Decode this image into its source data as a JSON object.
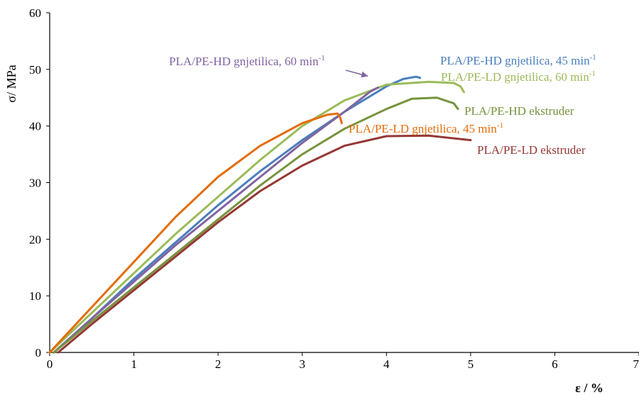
{
  "chart_data": {
    "type": "line",
    "title": "",
    "xlabel": "ε / %",
    "ylabel": "σ/ MPa",
    "xlim": [
      0,
      7
    ],
    "ylim": [
      0,
      60
    ],
    "xticks": [
      "0",
      "1",
      "2",
      "3",
      "4",
      "5",
      "6",
      "7"
    ],
    "yticks": [
      "0",
      "10",
      "20",
      "30",
      "40",
      "50",
      "60"
    ],
    "grid": false,
    "legend": "none; series labelled directly on the plot",
    "series": [
      {
        "name": "PLA/PE-HD gnjetilica, 45 min-1",
        "label_main": "PLA/PE-HD gnjetilica, 45 min",
        "label_sup": "-1",
        "color": "#4a7ebb",
        "x": [
          0.05,
          0.5,
          1.0,
          1.5,
          2.0,
          2.5,
          3.0,
          3.5,
          4.0,
          4.2,
          4.35,
          4.4
        ],
        "y": [
          0,
          6,
          13,
          19.5,
          26,
          32,
          37.5,
          42.5,
          47,
          48.3,
          48.7,
          48.5
        ]
      },
      {
        "name": "PLA/PE-LD gnjetilica, 60 min-1",
        "label_main": "PLA/PE-LD gnjetilica, 60 min",
        "label_sup": "-1",
        "color": "#9bbb59",
        "x": [
          0,
          0.5,
          1.0,
          1.5,
          2.0,
          2.5,
          3.0,
          3.5,
          4.0,
          4.5,
          4.8,
          4.88,
          4.92
        ],
        "y": [
          0,
          7,
          14,
          21,
          27.5,
          34,
          40,
          44.5,
          47.3,
          47.8,
          47.6,
          47,
          46
        ]
      },
      {
        "name": "PLA/PE-HD gnjetilica, 60 min-1",
        "label_main": "PLA/PE-HD gnjetilica, 60 min",
        "label_sup": "-1",
        "color": "#8064a2",
        "x": [
          0.05,
          0.5,
          1.0,
          1.5,
          2.0,
          2.5,
          3.0,
          3.5,
          3.8,
          3.9
        ],
        "y": [
          0,
          6,
          12.5,
          19,
          25,
          31,
          37,
          42.5,
          46,
          46.8
        ]
      },
      {
        "name": "PLA/PE-HD ekstruder",
        "color": "#77933c",
        "x": [
          0.05,
          0.5,
          1.0,
          1.5,
          2.0,
          2.5,
          3.0,
          3.5,
          4.0,
          4.3,
          4.6,
          4.8,
          4.85
        ],
        "y": [
          0,
          5.5,
          11.5,
          17.5,
          23.5,
          29.5,
          35,
          39.5,
          43,
          44.8,
          45,
          44,
          43
        ]
      },
      {
        "name": "PLA/PE-LD gnjetilica, 45 min-1",
        "label_main": "PLA/PE-LD gnjetilica, 45 min",
        "label_sup": "-1",
        "color": "#e46c0a",
        "x": [
          0,
          0.5,
          1.0,
          1.5,
          2.0,
          2.5,
          3.0,
          3.3,
          3.42,
          3.45,
          3.47
        ],
        "y": [
          0,
          8,
          16,
          24,
          31,
          36.5,
          40.5,
          42,
          42.2,
          41.5,
          40.5
        ]
      },
      {
        "name": "PLA/PE-LD ekstruder",
        "color": "#953735",
        "x": [
          0.1,
          0.5,
          1.0,
          1.5,
          2.0,
          2.5,
          3.0,
          3.5,
          4.0,
          4.5,
          5.0
        ],
        "y": [
          0,
          5,
          11,
          17,
          23,
          28.5,
          33,
          36.5,
          38.2,
          38.3,
          37.5
        ]
      }
    ],
    "annotations": [
      {
        "text": "PLA/PE-HD gnjetilica, 60 min",
        "sup": "-1",
        "color": "#8064a2",
        "arrow_to": [
          3.78,
          48.8
        ]
      }
    ]
  }
}
